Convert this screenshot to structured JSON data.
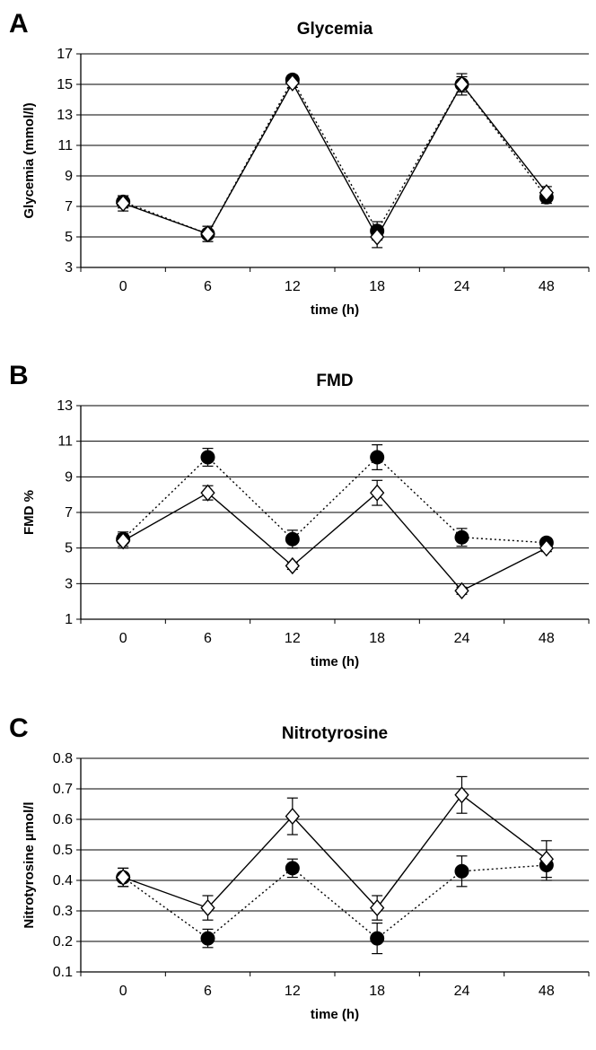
{
  "chart_data": [
    {
      "panel_label": "A",
      "type": "line",
      "title": "Glycemia",
      "xlabel": "time (h)",
      "ylabel": "Glycemia  (mmol/l)",
      "categories": [
        "0",
        "6",
        "12",
        "18",
        "24",
        "48"
      ],
      "ylim": [
        3,
        17
      ],
      "yticks": [
        3,
        5,
        7,
        9,
        11,
        13,
        15,
        17
      ],
      "grid": true,
      "series": [
        {
          "marker": "filled-circle",
          "line": "dotted",
          "values": [
            7.3,
            5.2,
            15.3,
            5.4,
            15.0,
            7.6
          ],
          "errors": [
            0.4,
            0.5,
            0.3,
            0.6,
            0.5,
            0.4
          ]
        },
        {
          "marker": "open-diamond",
          "line": "solid",
          "values": [
            7.2,
            5.2,
            15.1,
            5.0,
            15.0,
            7.9
          ],
          "errors": [
            0.5,
            0.5,
            0.3,
            0.7,
            0.7,
            0.4
          ]
        }
      ]
    },
    {
      "panel_label": "B",
      "type": "line",
      "title": "FMD",
      "xlabel": "time (h)",
      "ylabel": "FMD %",
      "categories": [
        "0",
        "6",
        "12",
        "18",
        "24",
        "48"
      ],
      "ylim": [
        1,
        13
      ],
      "yticks": [
        1,
        3,
        5,
        7,
        9,
        11,
        13
      ],
      "grid": true,
      "series": [
        {
          "marker": "filled-circle",
          "line": "dotted",
          "values": [
            5.5,
            10.1,
            5.5,
            10.1,
            5.6,
            5.3
          ],
          "errors": [
            0.4,
            0.5,
            0.5,
            0.7,
            0.5,
            0.2
          ]
        },
        {
          "marker": "open-diamond",
          "line": "solid",
          "values": [
            5.4,
            8.1,
            4.0,
            8.1,
            2.6,
            5.0
          ],
          "errors": [
            0.4,
            0.4,
            0.2,
            0.7,
            0.2,
            0.2
          ]
        }
      ]
    },
    {
      "panel_label": "C",
      "type": "line",
      "title": "Nitrotyrosine",
      "xlabel": "time (h)",
      "ylabel": "Nitrotyrosine µmol/l",
      "categories": [
        "0",
        "6",
        "12",
        "18",
        "24",
        "48"
      ],
      "ylim": [
        0.1,
        0.8
      ],
      "yticks": [
        "0.1",
        "0.2",
        "0.3",
        "0.4",
        "0.5",
        "0.6",
        "0.7",
        "0.8"
      ],
      "grid": true,
      "series": [
        {
          "marker": "filled-circle",
          "line": "dotted",
          "values": [
            0.41,
            0.21,
            0.44,
            0.21,
            0.43,
            0.45
          ],
          "errors": [
            0.03,
            0.03,
            0.03,
            0.05,
            0.05,
            0.05
          ]
        },
        {
          "marker": "open-diamond",
          "line": "solid",
          "values": [
            0.41,
            0.31,
            0.61,
            0.31,
            0.68,
            0.47
          ],
          "errors": [
            0.03,
            0.04,
            0.06,
            0.04,
            0.06,
            0.06
          ]
        }
      ]
    }
  ]
}
